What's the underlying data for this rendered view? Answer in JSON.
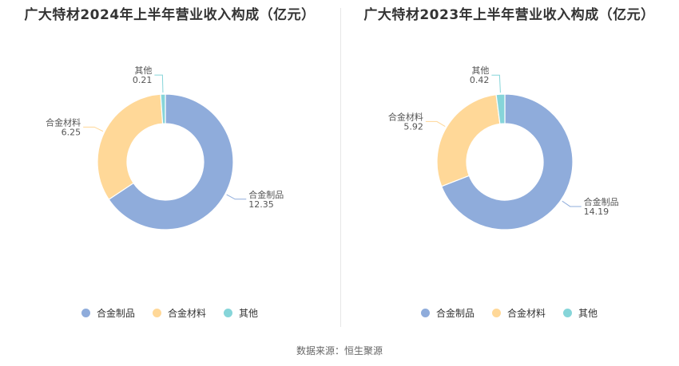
{
  "source_note": "数据来源：恒生聚源",
  "chart_data": [
    {
      "type": "pie",
      "style": "donut",
      "title": "广大特材2024年上半年营业收入构成（亿元）",
      "categories": [
        "合金制品",
        "合金材料",
        "其他"
      ],
      "values": [
        12.35,
        6.25,
        0.21
      ],
      "colors": [
        "#8facdb",
        "#ffd898",
        "#86d5d9"
      ],
      "legend": "bottom"
    },
    {
      "type": "pie",
      "style": "donut",
      "title": "广大特材2023年上半年营业收入构成（亿元）",
      "categories": [
        "合金制品",
        "合金材料",
        "其他"
      ],
      "values": [
        14.19,
        5.92,
        0.42
      ],
      "colors": [
        "#8facdb",
        "#ffd898",
        "#86d5d9"
      ],
      "legend": "bottom"
    }
  ]
}
